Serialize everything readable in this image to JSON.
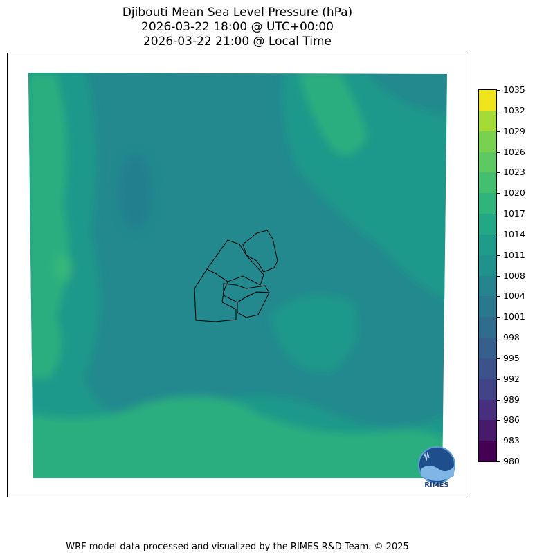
{
  "title": {
    "line1": "Djibouti Mean Sea Level Pressure (hPa)",
    "line2": "2026-03-22 18:00 @ UTC+00:00",
    "line3": "2026-03-22 21:00 @ Local Time"
  },
  "footer": "WRF model data processed and visualized by the RIMES R&D Team. © 2025",
  "logo": {
    "text": "RIMES"
  },
  "chart_data": {
    "type": "heatmap",
    "variable": "Mean Sea Level Pressure",
    "unit": "hPa",
    "colormap": "viridis",
    "levels": [
      980,
      983,
      986,
      989,
      992,
      995,
      998,
      1001,
      1004,
      1008,
      1011,
      1014,
      1017,
      1020,
      1023,
      1026,
      1029,
      1032,
      1035
    ],
    "tick_labels": [
      "980",
      "983",
      "986",
      "989",
      "992",
      "995",
      "998",
      "1001",
      "1004",
      "1008",
      "1011",
      "1014",
      "1017",
      "1020",
      "1023",
      "1026",
      "1029",
      "1032",
      "1035"
    ],
    "level_colors": [
      "#440154",
      "#481a6c",
      "#472f7d",
      "#414487",
      "#39568c",
      "#31688e",
      "#2a788e",
      "#23888e",
      "#1f988b",
      "#22a884",
      "#35b779",
      "#54c568",
      "#7ad151",
      "#a5db36",
      "#d2e21b",
      "#fde725",
      "#fde725",
      "#fde725"
    ],
    "value_range_shown": [
      1008,
      1020
    ],
    "dominant_range": [
      1008,
      1014
    ],
    "colorbar_placement": "right"
  }
}
